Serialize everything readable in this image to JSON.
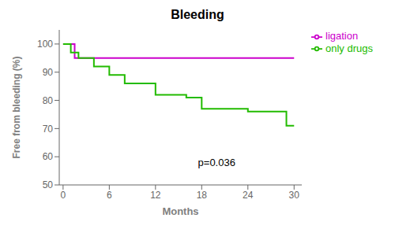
{
  "chart_data": {
    "type": "line",
    "title": "Bleeding",
    "xlabel": "Months",
    "ylabel": "Free from bleeding (%)",
    "xlim": [
      -0.5,
      31
    ],
    "xticks": [
      0,
      6,
      12,
      18,
      24,
      30
    ],
    "ylim": [
      50,
      105
    ],
    "yticks": [
      50,
      60,
      70,
      80,
      90,
      100
    ],
    "grid": false,
    "legend": "right",
    "series": [
      {
        "name": "ligation",
        "color": "#cc00cc",
        "x": [
          0,
          1.5,
          1.5,
          30
        ],
        "values": [
          100,
          100,
          95,
          95
        ]
      },
      {
        "name": "only drugs",
        "color": "#22bb00",
        "x": [
          0,
          1,
          1,
          2,
          2,
          4,
          4,
          6,
          6,
          8,
          8,
          12,
          12,
          16,
          16,
          18,
          18,
          24,
          24,
          29,
          29,
          30
        ],
        "values": [
          100,
          100,
          97,
          97,
          95,
          95,
          92,
          92,
          89,
          89,
          86,
          86,
          82,
          82,
          81,
          81,
          77,
          77,
          76,
          76,
          71,
          71
        ]
      }
    ],
    "annotations": [
      {
        "text": "p=0.036",
        "x": 17,
        "y": 58
      }
    ]
  }
}
